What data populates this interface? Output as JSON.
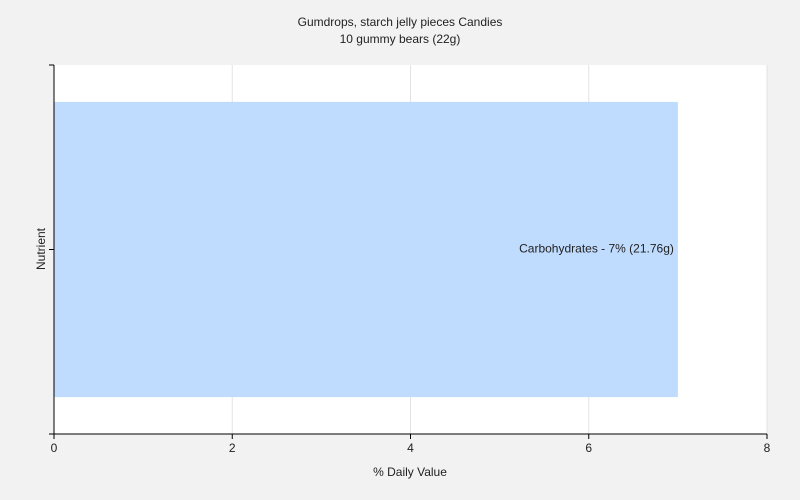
{
  "chart_data": {
    "type": "bar",
    "orientation": "horizontal",
    "title": "Gumdrops, starch jelly pieces Candies",
    "subtitle": "10 gummy bears (22g)",
    "xlabel": "% Daily Value",
    "ylabel": "Nutrient",
    "categories": [
      null
    ],
    "values": [
      7
    ],
    "value_labels": [
      "Carbohydrates - 7% (21.76g)"
    ],
    "color": "#bfdbfe",
    "xlim": [
      0,
      8
    ],
    "xticks": [
      0,
      2,
      4,
      6,
      8
    ],
    "grid": true
  }
}
